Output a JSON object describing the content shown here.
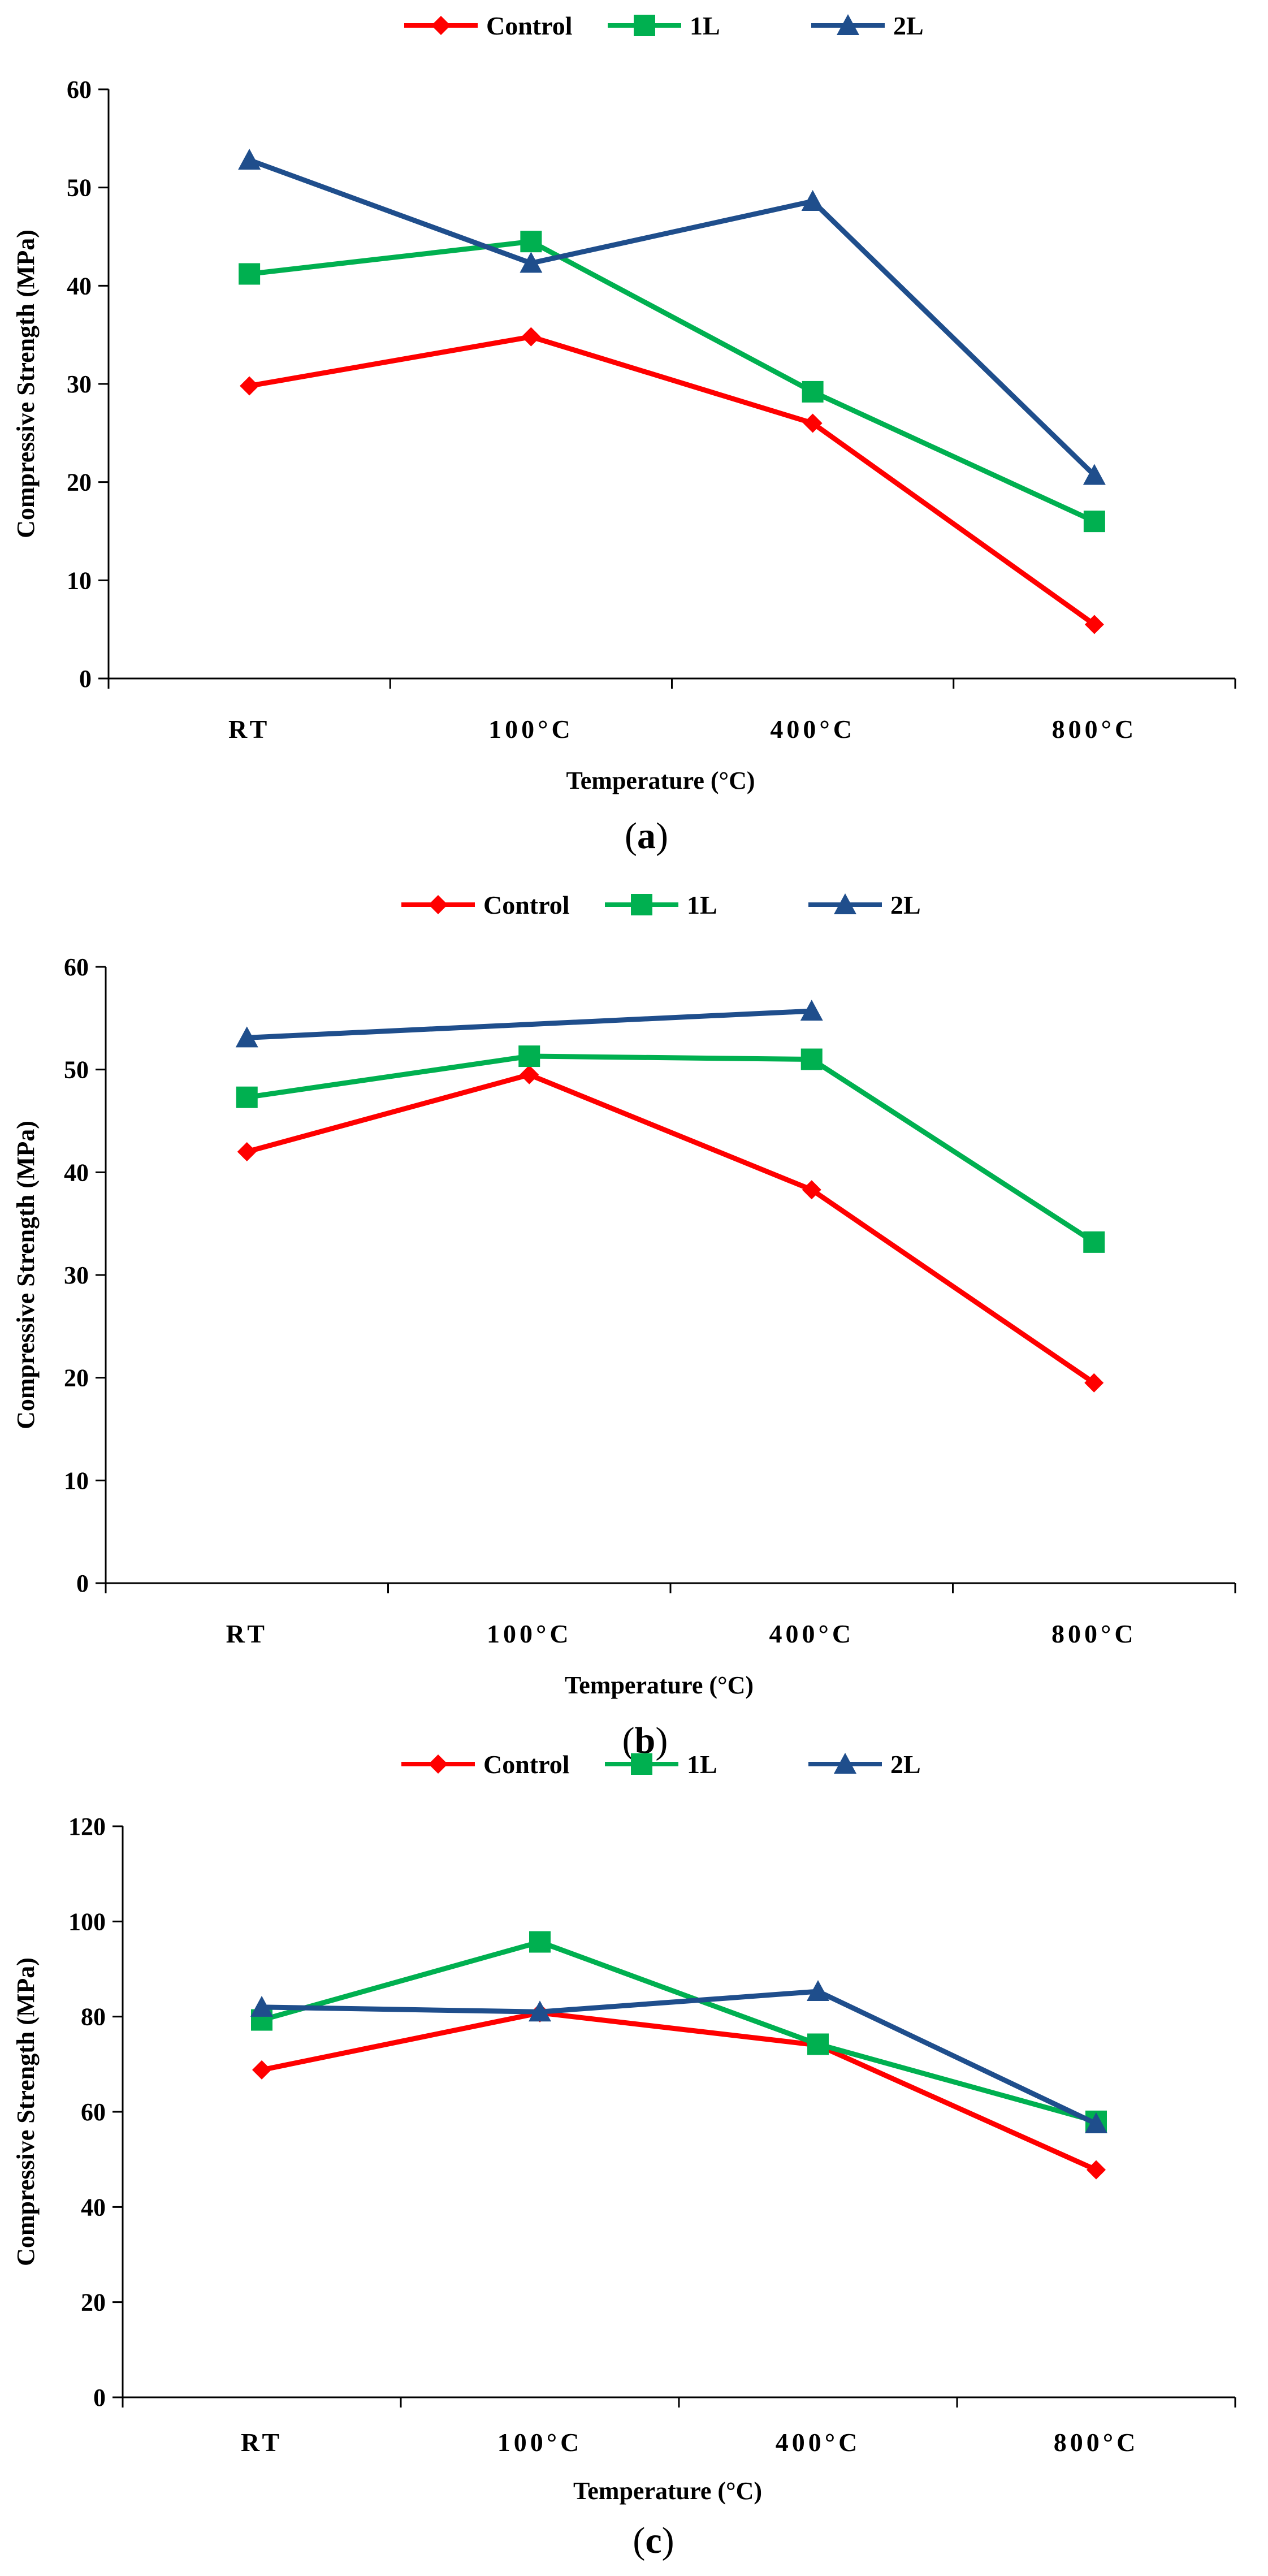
{
  "chart_data": [
    {
      "type": "line",
      "panel_label": "a",
      "categories": [
        "RT",
        "100°C",
        "400°C",
        "800°C"
      ],
      "xlabel": "Temperature (°C)",
      "ylabel": "Compressive Strength (MPa)",
      "ylim": [
        0,
        60
      ],
      "yticks": [
        0,
        10,
        20,
        30,
        40,
        50,
        60
      ],
      "legend_position": "top-center",
      "series": [
        {
          "name": "Control",
          "color": "#ff0000",
          "marker": "diamond",
          "values": [
            29.8,
            34.8,
            26.0,
            5.5
          ]
        },
        {
          "name": "1L",
          "color": "#00b050",
          "marker": "square",
          "values": [
            41.2,
            44.5,
            29.2,
            16.0
          ]
        },
        {
          "name": "2L",
          "color": "#1f4e8c",
          "marker": "triangle",
          "values": [
            52.8,
            42.3,
            48.6,
            20.7
          ]
        }
      ]
    },
    {
      "type": "line",
      "panel_label": "b",
      "categories": [
        "RT",
        "100°C",
        "400°C",
        "800°C"
      ],
      "xlabel": "Temperature (°C)",
      "ylabel": "Compressive Strength (MPa)",
      "ylim": [
        0,
        60
      ],
      "yticks": [
        0,
        10,
        20,
        30,
        40,
        50,
        60
      ],
      "legend_position": "top-center",
      "series": [
        {
          "name": "Control",
          "color": "#ff0000",
          "marker": "diamond",
          "values": [
            42.0,
            49.5,
            38.3,
            19.5
          ]
        },
        {
          "name": "1L",
          "color": "#00b050",
          "marker": "square",
          "values": [
            47.3,
            51.3,
            51.0,
            33.2
          ]
        },
        {
          "name": "2L",
          "color": "#1f4e8c",
          "marker": "triangle",
          "values": [
            53.1,
            null,
            55.7,
            null
          ]
        }
      ]
    },
    {
      "type": "line",
      "panel_label": "c",
      "categories": [
        "RT",
        "100°C",
        "400°C",
        "800°C"
      ],
      "xlabel": "Temperature (°C)",
      "ylabel": "Compressive Strength (MPa)",
      "ylim": [
        0,
        120
      ],
      "yticks": [
        0,
        20,
        40,
        60,
        80,
        100,
        120
      ],
      "legend_position": "top-center",
      "series": [
        {
          "name": "Control",
          "color": "#ff0000",
          "marker": "diamond",
          "values": [
            68.8,
            80.8,
            74.0,
            47.8
          ]
        },
        {
          "name": "1L",
          "color": "#00b050",
          "marker": "square",
          "values": [
            79.3,
            95.7,
            74.2,
            58.0
          ]
        },
        {
          "name": "2L",
          "color": "#1f4e8c",
          "marker": "triangle",
          "values": [
            82.0,
            81.0,
            85.3,
            57.5
          ]
        }
      ]
    }
  ]
}
